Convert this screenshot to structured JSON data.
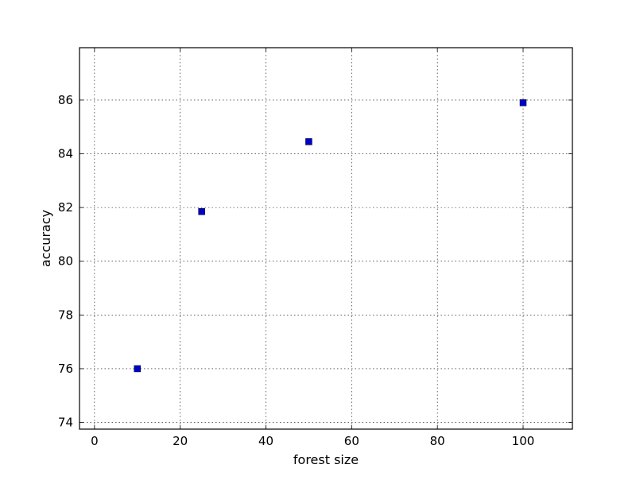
{
  "chart_data": {
    "type": "scatter",
    "title": "",
    "xlabel": "forest size",
    "ylabel": "accuracy",
    "xlim": [
      -3.5,
      111.5
    ],
    "ylim": [
      73.75,
      87.95
    ],
    "xticks": [
      0,
      20,
      40,
      60,
      80,
      100
    ],
    "yticks": [
      74,
      76,
      78,
      80,
      82,
      84,
      86
    ],
    "xtick_labels": [
      "0",
      "20",
      "40",
      "60",
      "80",
      "100"
    ],
    "ytick_labels": [
      "74",
      "76",
      "78",
      "80",
      "82",
      "84",
      "86"
    ],
    "grid": true,
    "marker": "square",
    "series": [
      {
        "color": "#0000cc",
        "points": [
          {
            "x": 10,
            "y": 76.0
          },
          {
            "x": 25,
            "y": 81.85
          },
          {
            "x": 50,
            "y": 84.45
          },
          {
            "x": 100,
            "y": 85.9
          }
        ]
      }
    ]
  }
}
